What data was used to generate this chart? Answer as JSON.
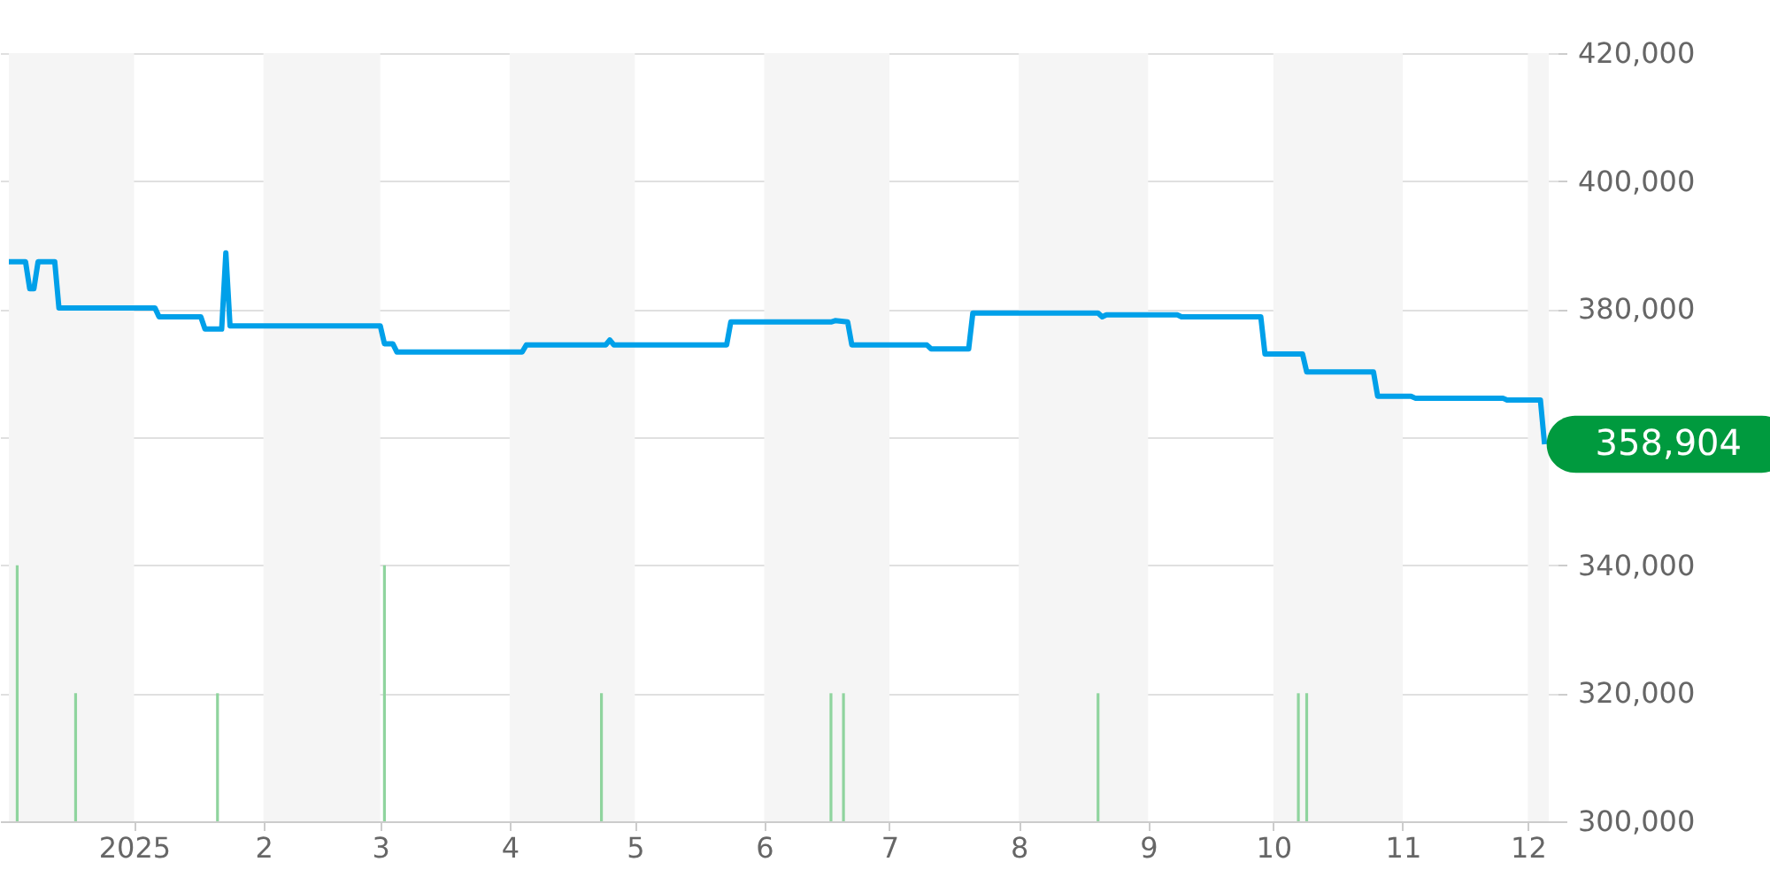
{
  "chart_data": {
    "type": "line",
    "xlim": [
      "2024-12-02",
      "2025-12-06"
    ],
    "xticks": [
      {
        "value": "2025-01-01",
        "label": "2025"
      },
      {
        "value": "2025-02-01",
        "label": "2"
      },
      {
        "value": "2025-03-01",
        "label": "3"
      },
      {
        "value": "2025-04-01",
        "label": "4"
      },
      {
        "value": "2025-05-01",
        "label": "5"
      },
      {
        "value": "2025-06-01",
        "label": "6"
      },
      {
        "value": "2025-07-01",
        "label": "7"
      },
      {
        "value": "2025-08-01",
        "label": "8"
      },
      {
        "value": "2025-09-01",
        "label": "9"
      },
      {
        "value": "2025-10-01",
        "label": "10"
      },
      {
        "value": "2025-11-01",
        "label": "11"
      },
      {
        "value": "2025-12-01",
        "label": "12"
      }
    ],
    "ylim": [
      300000,
      420000
    ],
    "yticks": [
      {
        "value": 300000,
        "label": "300,000"
      },
      {
        "value": 320000,
        "label": "320,000"
      },
      {
        "value": 340000,
        "label": "340,000"
      },
      {
        "value": 360000,
        "label": null
      },
      {
        "value": 380000,
        "label": "380,000"
      },
      {
        "value": 400000,
        "label": "400,000"
      },
      {
        "value": 420000,
        "label": "420,000"
      }
    ],
    "grid": "y",
    "marker": "none",
    "line_style": "solid",
    "bands": [
      {
        "axis": "x",
        "from": "2024-12-02",
        "to": "2025-01-01",
        "color": "#f5f5f5"
      },
      {
        "axis": "x",
        "from": "2025-02-01",
        "to": "2025-03-01",
        "color": "#f5f5f5"
      },
      {
        "axis": "x",
        "from": "2025-04-01",
        "to": "2025-05-01",
        "color": "#f5f5f5"
      },
      {
        "axis": "x",
        "from": "2025-06-01",
        "to": "2025-07-01",
        "color": "#f5f5f5"
      },
      {
        "axis": "x",
        "from": "2025-08-01",
        "to": "2025-09-01",
        "color": "#f5f5f5"
      },
      {
        "axis": "x",
        "from": "2025-10-01",
        "to": "2025-11-01",
        "color": "#f5f5f5"
      },
      {
        "axis": "x",
        "from": "2025-12-01",
        "to": "2025-12-06",
        "color": "#f5f5f5"
      }
    ],
    "series": [
      {
        "type": "bar",
        "color": "#8fd49e",
        "x": [
          "2024-12-04",
          "2024-12-18",
          "2025-01-21",
          "2025-03-02",
          "2025-04-23",
          "2025-06-17",
          "2025-06-20",
          "2025-08-20",
          "2025-10-07",
          "2025-10-09"
        ],
        "values": [
          340000,
          320000,
          320000,
          340000,
          320000,
          320000,
          320000,
          320000,
          320000,
          320000
        ]
      },
      {
        "color": "#00a0e9",
        "x": [
          "2024-12-02",
          "2024-12-06",
          "2024-12-07",
          "2024-12-08",
          "2024-12-09",
          "2024-12-13",
          "2024-12-14",
          "2025-01-06",
          "2025-01-07",
          "2025-01-17",
          "2025-01-18",
          "2025-01-22",
          "2025-01-23",
          "2025-01-24",
          "2025-03-01",
          "2025-03-02",
          "2025-03-04",
          "2025-03-05",
          "2025-04-04",
          "2025-04-05",
          "2025-04-24",
          "2025-04-25",
          "2025-04-26",
          "2025-05-23",
          "2025-05-24",
          "2025-06-17",
          "2025-06-18",
          "2025-06-21",
          "2025-06-22",
          "2025-07-10",
          "2025-07-11",
          "2025-07-20",
          "2025-07-21",
          "2025-08-20",
          "2025-08-21",
          "2025-08-22",
          "2025-09-08",
          "2025-09-09",
          "2025-09-28",
          "2025-09-29",
          "2025-10-08",
          "2025-10-09",
          "2025-10-25",
          "2025-10-26",
          "2025-11-03",
          "2025-11-04",
          "2025-11-25",
          "2025-11-26",
          "2025-12-04",
          "2025-12-05"
        ],
        "values": [
          387400,
          387400,
          383200,
          383200,
          387400,
          387400,
          380200,
          380200,
          378800,
          378800,
          376900,
          376900,
          388800,
          377400,
          377400,
          374600,
          374600,
          373300,
          373300,
          374400,
          374400,
          375200,
          374400,
          374400,
          378000,
          378000,
          378200,
          378000,
          374400,
          374400,
          373800,
          373800,
          379400,
          379400,
          378800,
          379100,
          379100,
          378800,
          378800,
          373000,
          373000,
          370200,
          370200,
          366400,
          366400,
          366100,
          366100,
          365800,
          365800,
          358904
        ]
      }
    ],
    "annotations": [
      {
        "text": "358,904",
        "x": "2025-12-05",
        "y": 358904
      }
    ]
  }
}
